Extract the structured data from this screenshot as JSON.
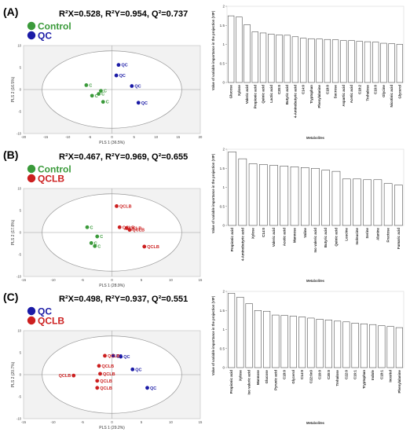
{
  "colors": {
    "Control": "#3a9a3a",
    "QC": "#1a1aa6",
    "QCLB": "#cc1f1f"
  },
  "chart_data": [
    {
      "panel": "(A)",
      "type": "scatter",
      "stats": "R²X=0.528, R²Y=0.954, Q²=0.737",
      "xlabel": "PLS 1 (36.5%)",
      "ylabel": "PLS 2 (16.5%)",
      "xlim": [
        -20,
        20
      ],
      "ylim": [
        -10,
        10
      ],
      "xticks": [
        -20,
        -15,
        -10,
        -5,
        0,
        5,
        10,
        15,
        20
      ],
      "yticks": [
        -10,
        -5,
        0,
        5,
        10
      ],
      "legend": [
        "Control",
        "QC"
      ],
      "series": [
        {
          "name": "Control",
          "label": "C",
          "points": [
            [
              -5.8,
              1.0
            ],
            [
              -2.5,
              -0.3
            ],
            [
              -3.0,
              -1.0
            ],
            [
              -4.5,
              -1.4
            ],
            [
              -2.0,
              -2.8
            ]
          ]
        },
        {
          "name": "QC",
          "label": "QC",
          "points": [
            [
              1.5,
              5.6
            ],
            [
              1.0,
              3.2
            ],
            [
              4.5,
              0.8
            ],
            [
              6.0,
              -3.0
            ]
          ]
        }
      ]
    },
    {
      "panel": "(A)",
      "type": "bar",
      "ylabel": "Value of variable importance in the projection (VIP)",
      "xlabel": "Metabolites",
      "ylim": [
        0,
        2
      ],
      "yticks": [
        0,
        0.5,
        1,
        1.5,
        2
      ],
      "categories": [
        "Glucose",
        "Xylose",
        "Valeric acid",
        "Propionic acid",
        "Quinic acid",
        "Lactic acid",
        "C20:0",
        "Butyric acid",
        "4-Aminobutyric acid",
        "C14:0",
        "Tryptophan",
        "Phenylalanine",
        "C18:0",
        "Sucrose",
        "Aspartic acid",
        "Acetic acid",
        "C18:2",
        "Trehalose",
        "C16:0",
        "Glycine",
        "Nicotinic acid",
        "Glycerol"
      ],
      "values": [
        1.75,
        1.72,
        1.52,
        1.33,
        1.3,
        1.27,
        1.25,
        1.24,
        1.2,
        1.16,
        1.15,
        1.14,
        1.13,
        1.12,
        1.1,
        1.1,
        1.08,
        1.07,
        1.06,
        1.03,
        1.02,
        1.0
      ]
    },
    {
      "panel": "(B)",
      "type": "scatter",
      "stats": "R²X=0.467, R²Y=0.969, Q²=0.655",
      "xlabel": "PLS 1 (28.9%)",
      "ylabel": "PLS 2 (17.8%)",
      "xlim": [
        -15,
        15
      ],
      "ylim": [
        -10,
        10
      ],
      "xticks": [
        -15,
        -10,
        -5,
        0,
        5,
        10,
        15
      ],
      "yticks": [
        -10,
        -5,
        0,
        5,
        10
      ],
      "legend": [
        "Control",
        "QCLB"
      ],
      "series": [
        {
          "name": "Control",
          "label": "C",
          "points": [
            [
              -4.2,
              1.2
            ],
            [
              -2.5,
              -0.9
            ],
            [
              -3.5,
              -2.4
            ],
            [
              -2.9,
              -3.1
            ]
          ]
        },
        {
          "name": "QCLB",
          "label": "QCLB",
          "points": [
            [
              0.8,
              6.0
            ],
            [
              1.3,
              1.2
            ],
            [
              2.5,
              1.0
            ],
            [
              3.0,
              0.6
            ],
            [
              5.5,
              -3.2
            ]
          ]
        }
      ]
    },
    {
      "panel": "(B)",
      "type": "bar",
      "ylabel": "Value of variable importance in the projection (VIP)",
      "xlabel": "Metabolites",
      "ylim": [
        0,
        2
      ],
      "yticks": [
        0,
        0.5,
        1,
        1.5,
        2
      ],
      "categories": [
        "Propionic acid",
        "4-Aminobutyric acid",
        "Xylose",
        "C14:0",
        "Valeric acid",
        "Acetic acid",
        "Mannose",
        "Valine",
        "Iso valeric acid",
        "Butyric acid",
        "Quinic acid",
        "Leucine",
        "Isoleucine",
        "Serine",
        "Alanine",
        "Fructose",
        "Fumaric acid"
      ],
      "values": [
        1.93,
        1.75,
        1.62,
        1.6,
        1.58,
        1.56,
        1.54,
        1.52,
        1.5,
        1.45,
        1.42,
        1.22,
        1.22,
        1.2,
        1.2,
        1.1,
        1.06
      ]
    },
    {
      "panel": "(C)",
      "type": "scatter",
      "stats": "R²X=0.498, R²Y=0.937, Q²=0.551",
      "xlabel": "PLS 1 (29.2%)",
      "ylabel": "PLS 2 (20.7%)",
      "xlim": [
        -15,
        15
      ],
      "ylim": [
        -10,
        10
      ],
      "xticks": [
        -15,
        -10,
        -5,
        0,
        5,
        10,
        15
      ],
      "yticks": [
        -10,
        -5,
        0,
        5,
        10
      ],
      "legend": [
        "QC",
        "QCLB"
      ],
      "series": [
        {
          "name": "QC",
          "label": "QC",
          "points": [
            [
              0.2,
              4.3
            ],
            [
              1.5,
              4.1
            ],
            [
              3.5,
              1.2
            ],
            [
              6.0,
              -3.0
            ]
          ]
        },
        {
          "name": "QCLB",
          "label": "QCLB",
          "points": [
            [
              -1.2,
              4.3
            ],
            [
              -2.2,
              2.0
            ],
            [
              -2.0,
              0.2
            ],
            [
              -2.5,
              -1.4
            ],
            [
              -2.5,
              -3.0
            ],
            [
              -6.5,
              -0.2
            ]
          ]
        }
      ]
    },
    {
      "panel": "(C)",
      "type": "bar",
      "ylabel": "Value of variable importance in the projection (VIP)",
      "xlabel": "Metabolites",
      "ylim": [
        0,
        2
      ],
      "yticks": [
        0,
        0.5,
        1,
        1.5,
        2
      ],
      "categories": [
        "Propionic acid",
        "Xylose",
        "Iso valeric acid",
        "Mannose",
        "Glucose",
        "Pyruvic acid",
        "C18:0",
        "Glycerol",
        "C14:0",
        "C22:6n3",
        "C16:0",
        "C20:0",
        "Trehalose",
        "C22:0",
        "C16:1",
        "Tryptophan",
        "Indole",
        "C18:1",
        "Inositol",
        "Phenylalanine"
      ],
      "values": [
        1.95,
        1.85,
        1.68,
        1.5,
        1.48,
        1.38,
        1.37,
        1.35,
        1.33,
        1.3,
        1.27,
        1.25,
        1.22,
        1.2,
        1.17,
        1.15,
        1.13,
        1.1,
        1.08,
        1.05
      ]
    }
  ]
}
